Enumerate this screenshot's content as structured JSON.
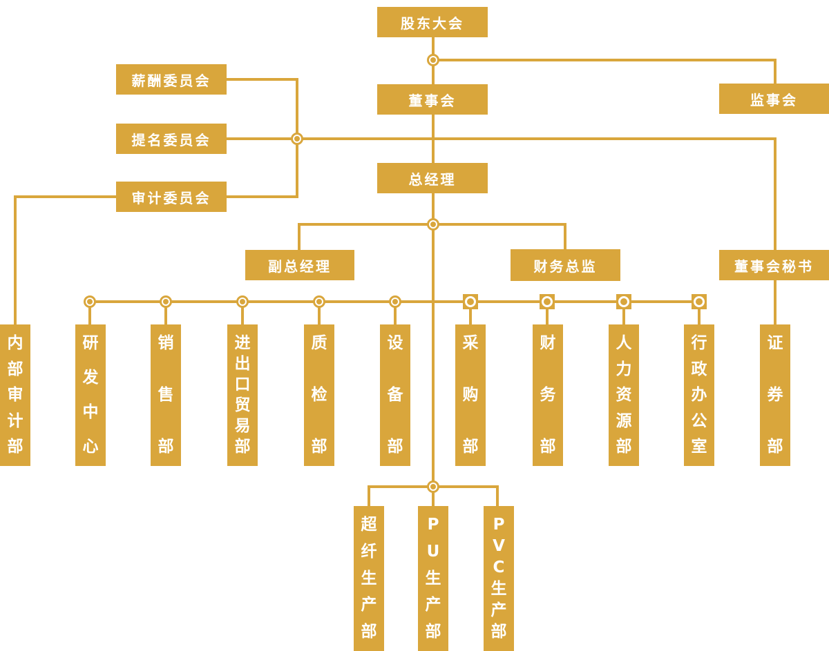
{
  "palette": {
    "gold": "#D9A63C",
    "node_text": "#FFFFFF"
  },
  "org": {
    "shareholders_meeting": {
      "label": "股东大会"
    },
    "board_of_directors": {
      "label": "董事会"
    },
    "supervisory_board": {
      "label": "监事会"
    },
    "committees": [
      {
        "label": "薪酬委员会"
      },
      {
        "label": "提名委员会"
      },
      {
        "label": "审计委员会"
      }
    ],
    "general_manager": {
      "label": "总经理"
    },
    "deputy_general_manager": {
      "label": "副总经理"
    },
    "finance_director": {
      "label": "财务总监"
    },
    "board_secretary": {
      "label": "董事会秘书"
    },
    "departments": [
      {
        "label": "内部审计部"
      },
      {
        "label": "研发中心"
      },
      {
        "label": "销售部"
      },
      {
        "label": "进出口贸易部"
      },
      {
        "label": "质检部"
      },
      {
        "label": "设备部"
      },
      {
        "label": "采购部"
      },
      {
        "label": "财务部"
      },
      {
        "label": "人力资源部"
      },
      {
        "label": "行政办公室"
      },
      {
        "label": "证券部"
      }
    ],
    "production_departments": [
      {
        "label": "超纤生产部"
      },
      {
        "label": "PU生产部"
      },
      {
        "label": "PVC生产部"
      }
    ]
  }
}
